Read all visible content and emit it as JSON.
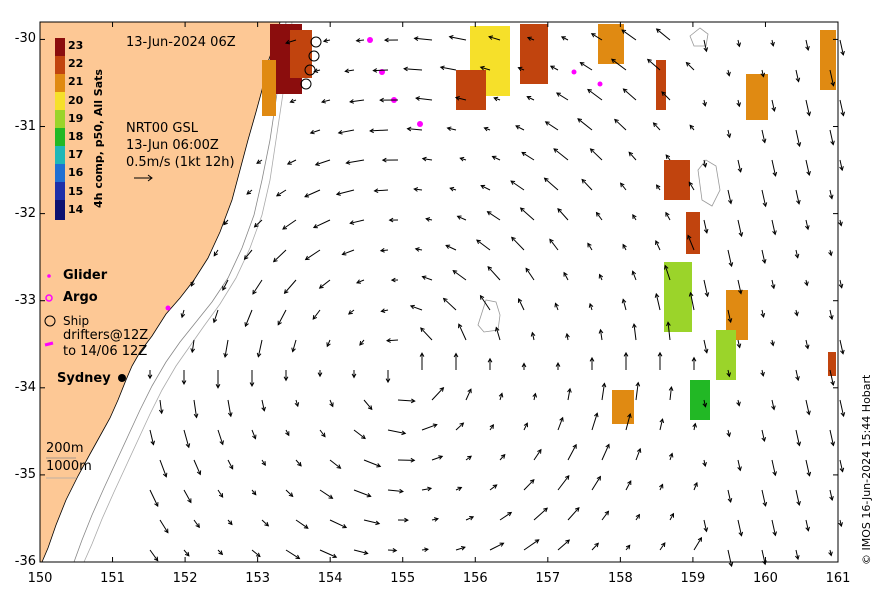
{
  "map_title": "13-Jun-2024 06Z",
  "product": {
    "line1": "NRT00 GSL",
    "line2": "13-Jun 06:00Z",
    "line3": "0.5m/s (1kt 12h)"
  },
  "colorbar": {
    "label": "4h comp, p50, All Sats",
    "ticks": [
      "23",
      "22",
      "21",
      "20",
      "19",
      "18",
      "17",
      "16",
      "15",
      "14"
    ]
  },
  "legend": {
    "glider": "Glider",
    "argo": "Argo",
    "ship": "Ship",
    "drifters_line1": "drifters@12Z",
    "drifters_line2": "to 14/06 12Z"
  },
  "place": "Sydney",
  "isobaths": {
    "shallow": "200m",
    "deep": "1000m"
  },
  "axes": {
    "x_ticks": [
      "150",
      "151",
      "152",
      "153",
      "154",
      "155",
      "156",
      "157",
      "158",
      "159",
      "160",
      "161"
    ],
    "y_ticks": [
      "-30",
      "-31",
      "-32",
      "-33",
      "-34",
      "-35",
      "-36"
    ],
    "lon_range": [
      150,
      161
    ],
    "lat_range": [
      -36,
      -29.8
    ]
  },
  "credit": "© IMOS 16-Jun-2024 15:44 Hobart",
  "colors": {
    "land": "#fdc895",
    "sst_23": "#8b0d0d",
    "sst_22": "#c1440e",
    "sst_21": "#e08a12",
    "sst_20": "#f6e02a",
    "sst_19": "#9bd42a",
    "sst_18": "#22b825",
    "drifter": "#ff00ff"
  }
}
